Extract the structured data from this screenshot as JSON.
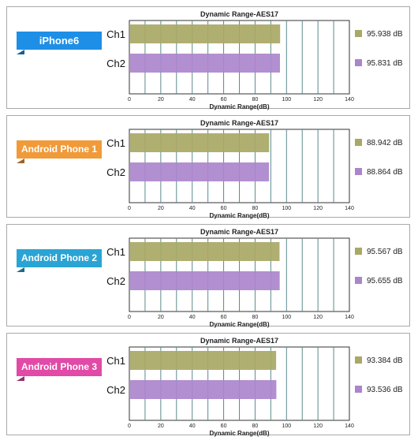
{
  "colors": {
    "ch1": "#a9a866",
    "ch2": "#ab85cc",
    "grid": "#5b8a8e",
    "axis": "#333333"
  },
  "chart_data": [
    {
      "type": "bar",
      "device": "iPhone6",
      "device_color": "#1e8fe6",
      "title": "Dynamic Range-AES17",
      "xlabel": "Dynamic Range(dB)",
      "xlim": [
        0,
        140
      ],
      "xticks": [
        0,
        20,
        40,
        60,
        80,
        100,
        120,
        140
      ],
      "categories": [
        "Ch1",
        "Ch2"
      ],
      "values": [
        95.938,
        95.831
      ],
      "value_labels": [
        "95.938 dB",
        "95.831 dB"
      ]
    },
    {
      "type": "bar",
      "device": "Android Phone 1",
      "device_color": "#f09a3a",
      "title": "Dynamic Range-AES17",
      "xlabel": "Dynamic Range(dB)",
      "xlim": [
        0,
        140
      ],
      "xticks": [
        0,
        20,
        40,
        60,
        80,
        100,
        120,
        140
      ],
      "categories": [
        "Ch1",
        "Ch2"
      ],
      "values": [
        88.942,
        88.864
      ],
      "value_labels": [
        "88.942 dB",
        "88.864 dB"
      ]
    },
    {
      "type": "bar",
      "device": "Android Phone 2",
      "device_color": "#2aa4d4",
      "title": "Dynamic Range-AES17",
      "xlabel": "Dynamic Range(dB)",
      "xlim": [
        0,
        140
      ],
      "xticks": [
        0,
        20,
        40,
        60,
        80,
        100,
        120,
        140
      ],
      "categories": [
        "Ch1",
        "Ch2"
      ],
      "values": [
        95.567,
        95.655
      ],
      "value_labels": [
        "95.567 dB",
        "95.655 dB"
      ]
    },
    {
      "type": "bar",
      "device": "Android Phone 3",
      "device_color": "#e14aa6",
      "title": "Dynamic Range-AES17",
      "xlabel": "Dynamic Range(dB)",
      "xlim": [
        0,
        140
      ],
      "xticks": [
        0,
        20,
        40,
        60,
        80,
        100,
        120,
        140
      ],
      "categories": [
        "Ch1",
        "Ch2"
      ],
      "values": [
        93.384,
        93.536
      ],
      "value_labels": [
        "93.384 dB",
        "93.536 dB"
      ]
    }
  ]
}
